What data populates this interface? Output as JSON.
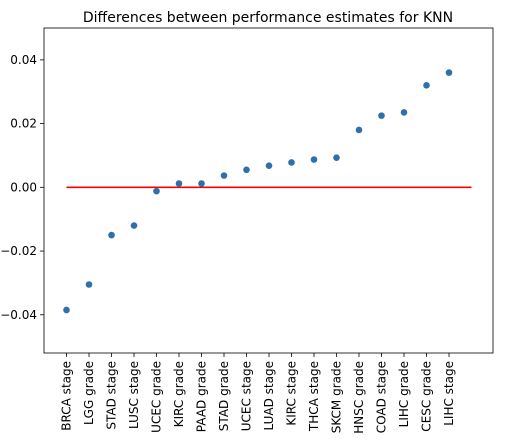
{
  "chart_data": {
    "type": "scatter",
    "title": "Differences between performance estimates for KNN",
    "xlabel": "",
    "ylabel": "",
    "categories": [
      "BRCA stage",
      "LGG grade",
      "STAD stage",
      "LUSC stage",
      "UCEC grade",
      "KIRC grade",
      "PAAD grade",
      "STAD grade",
      "UCEC stage",
      "LUAD stage",
      "KIRC stage",
      "THCA stage",
      "SKCM grade",
      "HNSC grade",
      "COAD stage",
      "LIHC grade",
      "CESC grade",
      "LIHC stage"
    ],
    "values": [
      -0.0385,
      -0.0305,
      -0.015,
      -0.012,
      -0.0012,
      0.0012,
      0.0012,
      0.0037,
      0.0055,
      0.0068,
      0.0078,
      0.0087,
      0.0093,
      0.018,
      0.0225,
      0.0235,
      0.032,
      0.036
    ],
    "ylim": [
      -0.052,
      0.05
    ],
    "yticks": [
      -0.04,
      -0.02,
      0.0,
      0.02,
      0.04
    ],
    "ytick_labels": [
      "−0.04",
      "−0.02",
      "0.00",
      "0.02",
      "0.04"
    ],
    "reference_line": {
      "y": 0.0,
      "color": "#ff0000"
    },
    "marker_color": "#2e6fac",
    "grid": false,
    "legend": "none"
  }
}
